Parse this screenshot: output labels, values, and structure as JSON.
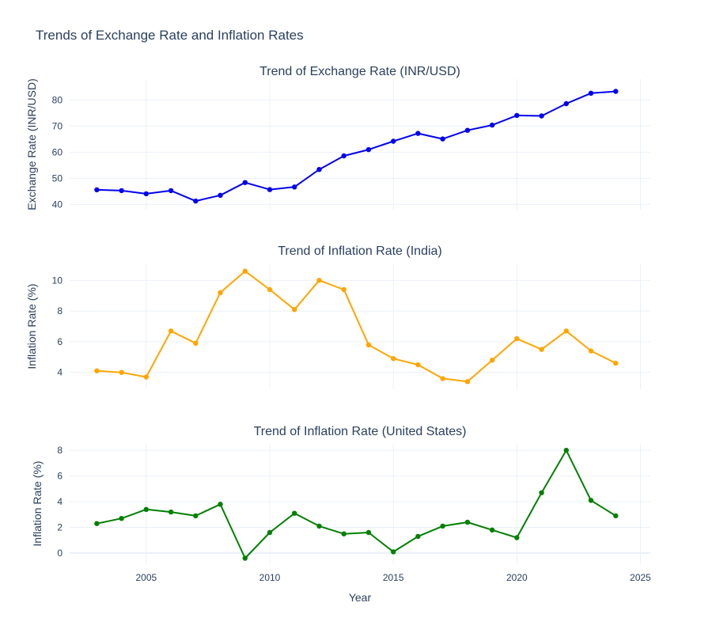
{
  "figure": {
    "title": "Trends of Exchange Rate and Inflation Rates"
  },
  "chart_data": [
    {
      "type": "line",
      "title": "Trend of Exchange Rate (INR/USD)",
      "xlabel": "",
      "ylabel": "Exchange Rate (INR/USD)",
      "x": [
        2003,
        2004,
        2005,
        2006,
        2007,
        2008,
        2009,
        2010,
        2011,
        2012,
        2013,
        2014,
        2015,
        2016,
        2017,
        2018,
        2019,
        2020,
        2021,
        2022,
        2023,
        2024
      ],
      "series": [
        {
          "values": [
            45.6,
            45.3,
            44.1,
            45.3,
            41.3,
            43.5,
            48.4,
            45.7,
            46.7,
            53.4,
            58.6,
            61.0,
            64.2,
            67.2,
            65.1,
            68.4,
            70.4,
            74.1,
            73.9,
            78.6,
            82.6,
            83.3
          ],
          "color": "#0000ee"
        }
      ],
      "xlim": [
        2001.9,
        2025.4
      ],
      "ylim": [
        38,
        88
      ],
      "yticks": [
        40,
        50,
        60,
        70,
        80
      ],
      "xticks": [
        2005,
        2010,
        2015,
        2020,
        2025
      ],
      "show_xticklabels": false,
      "grid": true
    },
    {
      "type": "line",
      "title": "Trend of Inflation Rate (India)",
      "xlabel": "",
      "ylabel": "Inflation Rate (%)",
      "x": [
        2003,
        2004,
        2005,
        2006,
        2007,
        2008,
        2009,
        2010,
        2011,
        2012,
        2013,
        2014,
        2015,
        2016,
        2017,
        2018,
        2019,
        2020,
        2021,
        2022,
        2023,
        2024
      ],
      "series": [
        {
          "values": [
            4.1,
            4.0,
            3.7,
            6.7,
            5.9,
            9.2,
            10.6,
            9.4,
            8.1,
            10.0,
            9.4,
            5.8,
            4.9,
            4.5,
            3.6,
            3.4,
            4.8,
            6.2,
            5.5,
            6.7,
            5.4,
            4.6
          ],
          "color": "#ffa500"
        }
      ],
      "xlim": [
        2001.9,
        2025.4
      ],
      "ylim": [
        2.9,
        11.1
      ],
      "yticks": [
        4,
        6,
        8,
        10
      ],
      "xticks": [
        2005,
        2010,
        2015,
        2020,
        2025
      ],
      "show_xticklabels": false,
      "grid": true
    },
    {
      "type": "line",
      "title": "Trend of Inflation Rate (United States)",
      "xlabel": "Year",
      "ylabel": "Inflation Rate (%)",
      "x": [
        2003,
        2004,
        2005,
        2006,
        2007,
        2008,
        2009,
        2010,
        2011,
        2012,
        2013,
        2014,
        2015,
        2016,
        2017,
        2018,
        2019,
        2020,
        2021,
        2022,
        2023,
        2024
      ],
      "series": [
        {
          "values": [
            2.3,
            2.7,
            3.4,
            3.2,
            2.9,
            3.8,
            -0.4,
            1.6,
            3.1,
            2.1,
            1.5,
            1.6,
            0.1,
            1.3,
            2.1,
            2.4,
            1.8,
            1.2,
            4.7,
            8.0,
            4.1,
            2.9
          ],
          "color": "#008000"
        }
      ],
      "xlim": [
        2001.9,
        2025.4
      ],
      "ylim": [
        -0.8,
        8.5
      ],
      "yticks": [
        0,
        2,
        4,
        6,
        8
      ],
      "xticks": [
        2005,
        2010,
        2015,
        2020,
        2025
      ],
      "show_xticklabels": true,
      "grid": true
    }
  ]
}
